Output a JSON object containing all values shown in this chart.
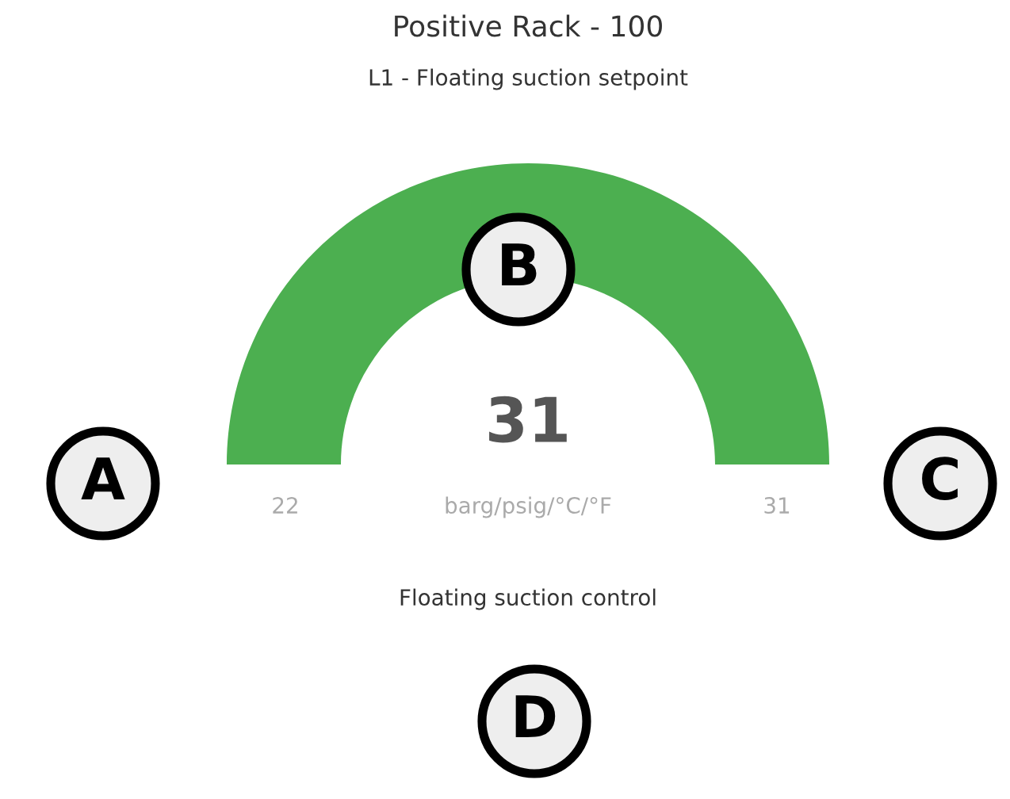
{
  "chart_data": {
    "type": "other",
    "title": "Positive Rack - 100",
    "subtitle": "L1 - Floating suction setpoint",
    "values": [
      31
    ],
    "data_labels": true,
    "colors": [
      "#4caf50"
    ],
    "xlabel": "barg/psig/°C/°F",
    "annotations": [
      "22",
      "31",
      "Floating suction control",
      "A",
      "B",
      "C",
      "D"
    ]
  }
}
